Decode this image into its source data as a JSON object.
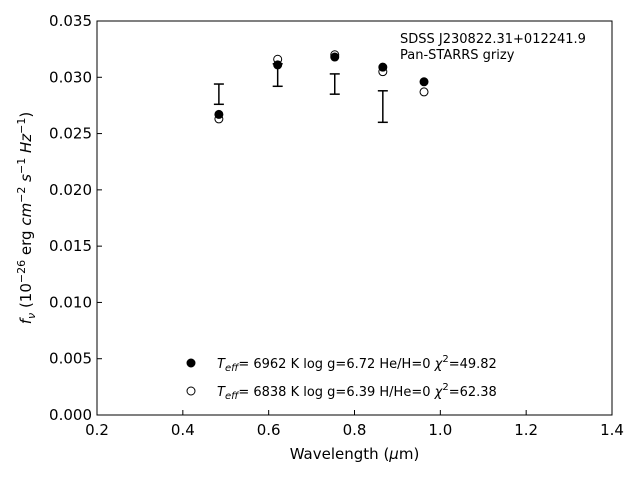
{
  "chart_data": {
    "type": "scatter",
    "xlabel": "Wavelength (μm)",
    "ylabel": "f_ν (10^-26 erg cm^-2 s^-1 Hz^-1)",
    "xlim": [
      0.2,
      1.4
    ],
    "ylim": [
      0.0,
      0.035
    ],
    "x_ticks": [
      "0.2",
      "0.4",
      "0.6",
      "0.8",
      "1.0",
      "1.2",
      "1.4"
    ],
    "y_ticks": [
      "0.000",
      "0.005",
      "0.010",
      "0.015",
      "0.020",
      "0.025",
      "0.030",
      "0.035"
    ],
    "grid": false,
    "annotations": [
      "SDSS J230822.31+012241.9",
      "Pan-STARRS grizy"
    ],
    "observed": {
      "marker": "errorbar",
      "x": [
        0.484,
        0.621,
        0.754,
        0.866,
        0.962
      ],
      "y": [
        0.0285,
        0.0302,
        0.0294,
        0.0274,
        0.0296
      ],
      "yerr": [
        0.0009,
        0.001,
        0.0009,
        0.0014,
        0.0
      ]
    },
    "series": [
      {
        "marker": "filled-circle",
        "x": [
          0.484,
          0.621,
          0.754,
          0.866,
          0.962
        ],
        "y": [
          0.0267,
          0.0311,
          0.0318,
          0.0309,
          0.0296
        ]
      },
      {
        "marker": "open-circle",
        "x": [
          0.484,
          0.621,
          0.754,
          0.866,
          0.962
        ],
        "y": [
          0.0263,
          0.0316,
          0.032,
          0.0305,
          0.0287
        ]
      }
    ],
    "legend": {
      "placement": "bottom-center",
      "entries": [
        {
          "marker": "filled-circle",
          "teff_label": "T",
          "teff_sub": "eff",
          "text": "=  6962 K  log g=6.72  He/H=0  ",
          "chi_label": "χ",
          "chi_sup": "2",
          "chi_value": "=49.82"
        },
        {
          "marker": "open-circle",
          "teff_label": "T",
          "teff_sub": "eff",
          "text": "=  6838 K  log g=6.39  H/He=0  ",
          "chi_label": "χ",
          "chi_sup": "2",
          "chi_value": "=62.38"
        }
      ]
    }
  }
}
